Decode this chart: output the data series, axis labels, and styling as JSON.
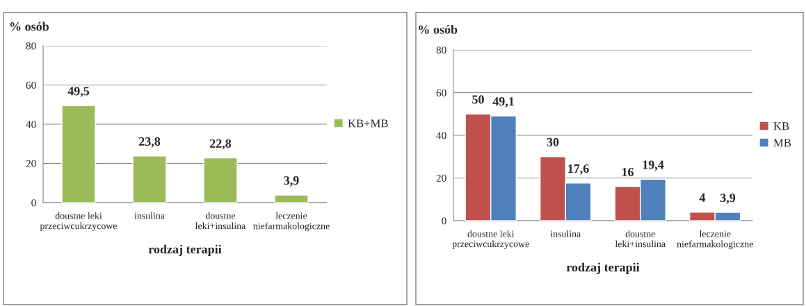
{
  "chart_data": [
    {
      "type": "bar",
      "ylabel": "% osób",
      "xlabel": "rodzaj terapii",
      "categories": [
        "doustne leki\nprzeciwcukrzycowe",
        "insulina",
        "doustne\nleki+insulina",
        "leczenie\nniefarmakologiczne"
      ],
      "series": [
        {
          "name": "KB+MB",
          "color": "#9bbb59",
          "values": [
            49.5,
            23.8,
            22.8,
            3.9
          ],
          "value_labels": [
            "49,5",
            "23,8",
            "22,8",
            "3,9"
          ]
        }
      ],
      "ylim": [
        0,
        80
      ],
      "yticks": [
        0,
        20,
        40,
        60,
        80
      ],
      "grid": "y",
      "legend": "right"
    },
    {
      "type": "bar",
      "ylabel": "% osób",
      "xlabel": "rodzaj terapii",
      "categories": [
        "doustne leki\nprzeciwcukrzycowe",
        "insulina",
        "doustne\nleki+insulina",
        "leczenie\nniefarmakologiczne"
      ],
      "series": [
        {
          "name": "KB",
          "color": "#c0504d",
          "values": [
            50,
            30,
            16,
            4
          ],
          "value_labels": [
            "50",
            "30",
            "16",
            "4"
          ]
        },
        {
          "name": "MB",
          "color": "#4f81bd",
          "values": [
            49.1,
            17.6,
            19.4,
            3.9
          ],
          "value_labels": [
            "49,1",
            "17,6",
            "19,4",
            "3,9"
          ]
        }
      ],
      "ylim": [
        0,
        80
      ],
      "yticks": [
        0,
        20,
        40,
        60,
        80
      ],
      "grid": "y",
      "legend": "right"
    }
  ]
}
